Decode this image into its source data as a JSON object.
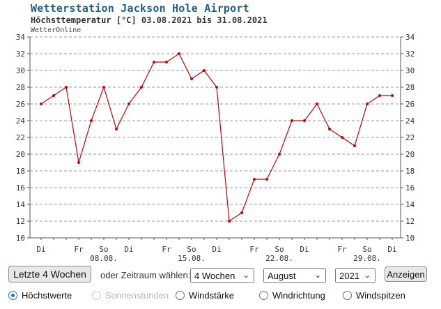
{
  "chart_data": {
    "type": "line",
    "title": "Wetterstation Jackson Hole Airport",
    "subtitle": "Höchsttemperatur [°C] 03.08.2021 bis 31.08.2021",
    "source": "WetterOnline",
    "ylim": [
      10,
      34
    ],
    "yticks": [
      10,
      12,
      14,
      16,
      18,
      20,
      22,
      24,
      26,
      28,
      30,
      32,
      34
    ],
    "grid": true,
    "line_color": "#cc0000",
    "x": [
      "03.08.",
      "04.08.",
      "05.08.",
      "06.08.",
      "07.08.",
      "08.08.",
      "09.08.",
      "10.08.",
      "11.08.",
      "12.08.",
      "13.08.",
      "14.08.",
      "15.08.",
      "16.08.",
      "17.08.",
      "18.08.",
      "19.08.",
      "20.08.",
      "21.08.",
      "22.08.",
      "23.08.",
      "24.08.",
      "25.08.",
      "26.08.",
      "27.08.",
      "28.08.",
      "29.08.",
      "30.08.",
      "31.08."
    ],
    "values": [
      26,
      27,
      28,
      19,
      24,
      28,
      23,
      26,
      28,
      31,
      31,
      32,
      29,
      30,
      28,
      12,
      13,
      17,
      17,
      20,
      24,
      24,
      26,
      23,
      22,
      21,
      26,
      27,
      27
    ],
    "day_labels": [
      {
        "index": 0,
        "label": "Di"
      },
      {
        "index": 3,
        "label": "Fr"
      },
      {
        "index": 5,
        "label": "So"
      },
      {
        "index": 7,
        "label": "Di"
      },
      {
        "index": 10,
        "label": "Fr"
      },
      {
        "index": 12,
        "label": "So"
      },
      {
        "index": 14,
        "label": "Di"
      },
      {
        "index": 17,
        "label": "Fr"
      },
      {
        "index": 19,
        "label": "So"
      },
      {
        "index": 21,
        "label": "Di"
      },
      {
        "index": 24,
        "label": "Fr"
      },
      {
        "index": 26,
        "label": "So"
      },
      {
        "index": 28,
        "label": "Di"
      }
    ],
    "date_labels": [
      {
        "index": 5,
        "label": "08.08."
      },
      {
        "index": 12,
        "label": "15.08."
      },
      {
        "index": 19,
        "label": "22.08."
      },
      {
        "index": 26,
        "label": "29.08."
      }
    ]
  },
  "controls": {
    "last_weeks_button": "Letzte 4 Wochen",
    "period_label": "oder Zeitraum wählen:",
    "range_select": "4 Wochen",
    "month_select": "August",
    "year_select": "2021",
    "show_button": "Anzeigen"
  },
  "radios": [
    {
      "label": "Höchstwerte",
      "checked": true,
      "disabled": false
    },
    {
      "label": "Sonnenstunden",
      "checked": false,
      "disabled": true
    },
    {
      "label": "Windstärke",
      "checked": false,
      "disabled": false
    },
    {
      "label": "Windrichtung",
      "checked": false,
      "disabled": false
    },
    {
      "label": "Windspitzen",
      "checked": false,
      "disabled": false
    }
  ]
}
